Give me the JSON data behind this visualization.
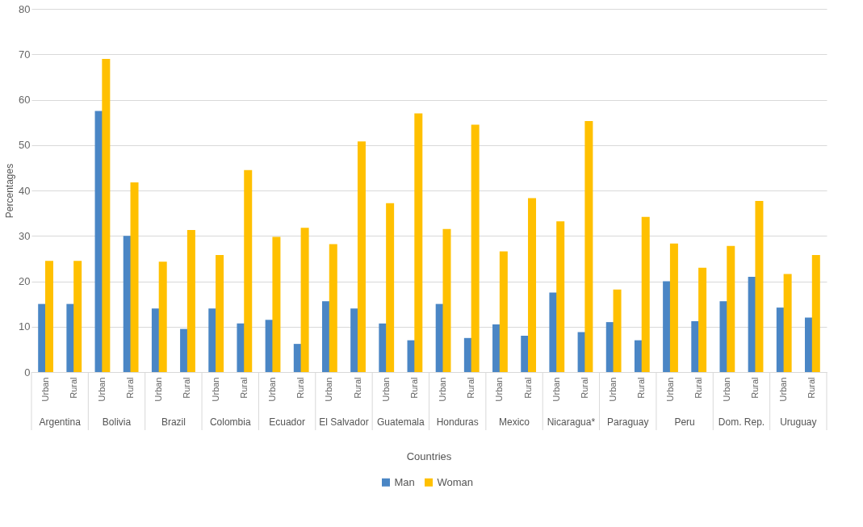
{
  "chart_data": {
    "type": "bar",
    "xlabel": "Countries",
    "ylabel": "Percentages",
    "categories": [
      "Urban",
      "Rural",
      "Urban",
      "Rural",
      "Urban",
      "Rural",
      "Urban",
      "Rural",
      "Urban",
      "Rural",
      "Urban",
      "Rural",
      "Urban",
      "Rural",
      "Urban",
      "Rural",
      "Urban",
      "Rural",
      "Urban",
      "Rural",
      "Urban",
      "Rural",
      "Urban",
      "Rural",
      "Urban",
      "Rural",
      "Urban",
      "Rural"
    ],
    "annotations": [
      "Argentina",
      "Bolivia",
      "Brazil",
      "Colombia",
      "Ecuador",
      "El Salvador",
      "Guatemala",
      "Honduras",
      "Mexico",
      "Nicaragua*",
      "Paraguay",
      "Peru",
      "Dom. Rep.",
      "Uruguay"
    ],
    "series": [
      {
        "name": "Man",
        "color": "#4a86c5",
        "values": [
          15,
          15,
          57.5,
          30,
          14,
          9.5,
          14,
          10.7,
          11.5,
          6.2,
          15.6,
          14,
          10.7,
          7,
          15,
          7.5,
          10.5,
          8,
          17.5,
          8.8,
          11,
          7,
          20,
          11.2,
          15.6,
          21,
          14.2,
          12
        ]
      },
      {
        "name": "Woman",
        "color": "#ffc000",
        "values": [
          24.5,
          24.5,
          69,
          41.8,
          24.3,
          31.3,
          25.8,
          44.5,
          29.8,
          31.8,
          28.2,
          50.8,
          37.2,
          57,
          31.5,
          54.5,
          26.6,
          38.3,
          33.2,
          55.3,
          18.2,
          34.2,
          28.3,
          23,
          27.8,
          37.7,
          21.6,
          25.8
        ]
      }
    ],
    "ylim": [
      0,
      80
    ],
    "yticks": [
      0,
      10,
      20,
      30,
      40,
      50,
      60,
      70,
      80
    ],
    "grid": "y",
    "legend": "bottom"
  }
}
